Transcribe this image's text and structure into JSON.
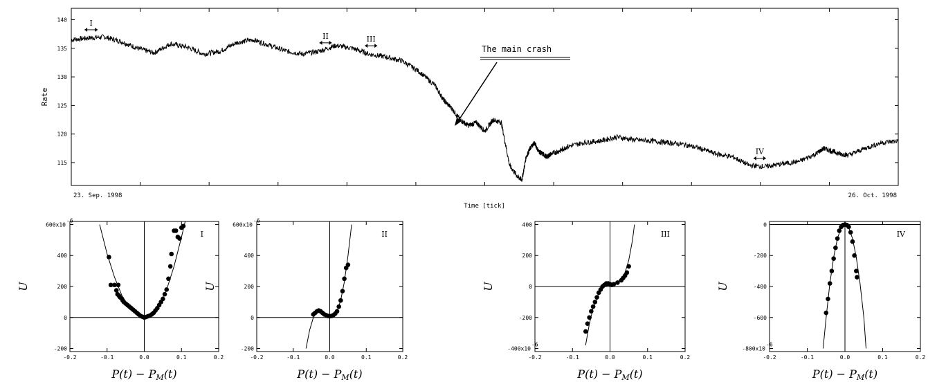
{
  "chart_data": [
    {
      "type": "line",
      "ylabel": "Rate",
      "xlabel": "Time [tick]",
      "x_start_label": "23. Sep. 1998",
      "x_end_label": "26. Oct. 1998",
      "ylim": [
        111,
        142
      ],
      "yticks": [
        115,
        120,
        125,
        130,
        135,
        140
      ],
      "series": [
        {
          "x": [
            0,
            0.02,
            0.04,
            0.06,
            0.08,
            0.1,
            0.12,
            0.14,
            0.16,
            0.18,
            0.2,
            0.22,
            0.24,
            0.26,
            0.28,
            0.3,
            0.32,
            0.34,
            0.36,
            0.38,
            0.4,
            0.42,
            0.44,
            0.45,
            0.46,
            0.47,
            0.48,
            0.49,
            0.5,
            0.51,
            0.52,
            0.53,
            0.54,
            0.545,
            0.55,
            0.555,
            0.56,
            0.565,
            0.57,
            0.575,
            0.58,
            0.59,
            0.6,
            0.62,
            0.64,
            0.66,
            0.68,
            0.7,
            0.72,
            0.74,
            0.76,
            0.78,
            0.8,
            0.82,
            0.84,
            0.86,
            0.88,
            0.9,
            0.91,
            0.92,
            0.93,
            0.94,
            0.96,
            0.98,
            1.0
          ],
          "y": [
            136.5,
            136.8,
            137.0,
            136.2,
            135.0,
            134.2,
            135.8,
            135.2,
            134.0,
            134.5,
            136.0,
            136.5,
            135.5,
            134.5,
            134.0,
            134.5,
            135.5,
            135.0,
            134.0,
            133.5,
            132.8,
            131.0,
            128.5,
            126.0,
            124.5,
            122.5,
            121.5,
            122.0,
            120.5,
            122.5,
            122.0,
            114.5,
            112.5,
            112.0,
            116.0,
            117.5,
            118.5,
            117.0,
            116.5,
            116.0,
            116.5,
            117.0,
            117.8,
            118.5,
            118.8,
            119.5,
            119.0,
            118.8,
            118.5,
            118.2,
            117.5,
            116.5,
            116.0,
            114.5,
            114.3,
            114.8,
            115.2,
            116.5,
            117.5,
            117.0,
            116.5,
            116.3,
            117.5,
            118.5,
            118.8
          ]
        }
      ],
      "annotations": [
        {
          "label": "I",
          "x_start": 0.016,
          "x_end": 0.032
        },
        {
          "label": "II",
          "x_start": 0.3,
          "x_end": 0.315
        },
        {
          "label": "III",
          "x_start": 0.355,
          "x_end": 0.37
        },
        {
          "label": "IV",
          "x_start": 0.825,
          "x_end": 0.84
        }
      ],
      "callout": "The main crash"
    },
    {
      "type": "scatter",
      "panel_label": "I",
      "xlabel": "P(t) − P_M(t)",
      "ylabel": "U",
      "xlim": [
        -0.2,
        0.2
      ],
      "ylim": [
        -220,
        620
      ],
      "xticks": [
        "-0.2",
        "-0.1",
        "0.0",
        "0.1",
        "0.2"
      ],
      "yticks": [
        "-200",
        "0",
        "200",
        "400",
        "600x10"
      ],
      "ytick_values": [
        -200,
        0,
        200,
        400,
        600
      ],
      "exponent": "-6",
      "points": [
        [
          -0.095,
          390
        ],
        [
          -0.09,
          210
        ],
        [
          -0.08,
          210
        ],
        [
          -0.075,
          175
        ],
        [
          -0.07,
          210
        ],
        [
          -0.072,
          150
        ],
        [
          -0.068,
          140
        ],
        [
          -0.065,
          130
        ],
        [
          -0.06,
          120
        ],
        [
          -0.058,
          110
        ],
        [
          -0.055,
          100
        ],
        [
          -0.05,
          90
        ],
        [
          -0.045,
          80
        ],
        [
          -0.04,
          70
        ],
        [
          -0.035,
          60
        ],
        [
          -0.03,
          50
        ],
        [
          -0.025,
          40
        ],
        [
          -0.02,
          30
        ],
        [
          -0.015,
          20
        ],
        [
          -0.01,
          10
        ],
        [
          -0.005,
          5
        ],
        [
          0.0,
          0
        ],
        [
          0.005,
          3
        ],
        [
          0.01,
          8
        ],
        [
          0.015,
          12
        ],
        [
          0.02,
          20
        ],
        [
          0.025,
          30
        ],
        [
          0.03,
          45
        ],
        [
          0.035,
          60
        ],
        [
          0.04,
          80
        ],
        [
          0.045,
          100
        ],
        [
          0.05,
          120
        ],
        [
          0.055,
          150
        ],
        [
          0.06,
          180
        ],
        [
          0.065,
          250
        ],
        [
          0.07,
          330
        ],
        [
          0.073,
          410
        ],
        [
          0.08,
          560
        ],
        [
          0.085,
          560
        ],
        [
          0.09,
          520
        ],
        [
          0.095,
          510
        ],
        [
          0.1,
          580
        ],
        [
          0.105,
          590
        ]
      ],
      "curve": [
        [
          -0.12,
          600
        ],
        [
          -0.1,
          410
        ],
        [
          -0.08,
          260
        ],
        [
          -0.06,
          140
        ],
        [
          -0.04,
          60
        ],
        [
          -0.02,
          15
        ],
        [
          0.0,
          0
        ],
        [
          0.02,
          20
        ],
        [
          0.04,
          80
        ],
        [
          0.06,
          180
        ],
        [
          0.08,
          330
        ],
        [
          0.1,
          520
        ],
        [
          0.11,
          620
        ]
      ]
    },
    {
      "type": "scatter",
      "panel_label": "II",
      "xlabel": "P(t) − P_M(t)",
      "ylabel": "U",
      "xlim": [
        -0.2,
        0.2
      ],
      "ylim": [
        -220,
        620
      ],
      "xticks": [
        "-0.2",
        "-0.1",
        "0.0",
        "0.1",
        "0.2"
      ],
      "yticks": [
        "-200",
        "0",
        "200",
        "400",
        "600x10"
      ],
      "ytick_values": [
        -200,
        0,
        200,
        400,
        600
      ],
      "exponent": "-6",
      "points": [
        [
          -0.045,
          20
        ],
        [
          -0.04,
          30
        ],
        [
          -0.035,
          40
        ],
        [
          -0.03,
          45
        ],
        [
          -0.025,
          40
        ],
        [
          -0.02,
          30
        ],
        [
          -0.015,
          20
        ],
        [
          -0.01,
          15
        ],
        [
          -0.005,
          10
        ],
        [
          0.0,
          8
        ],
        [
          0.005,
          10
        ],
        [
          0.01,
          15
        ],
        [
          0.015,
          25
        ],
        [
          0.02,
          40
        ],
        [
          0.025,
          70
        ],
        [
          0.03,
          110
        ],
        [
          0.035,
          170
        ],
        [
          0.04,
          250
        ],
        [
          0.045,
          320
        ],
        [
          0.05,
          340
        ]
      ],
      "curve": [
        [
          -0.065,
          -200
        ],
        [
          -0.055,
          -80
        ],
        [
          -0.045,
          0
        ],
        [
          -0.035,
          35
        ],
        [
          -0.025,
          40
        ],
        [
          -0.01,
          20
        ],
        [
          0.0,
          10
        ],
        [
          0.01,
          15
        ],
        [
          0.02,
          40
        ],
        [
          0.03,
          110
        ],
        [
          0.04,
          230
        ],
        [
          0.05,
          400
        ],
        [
          0.06,
          600
        ]
      ]
    },
    {
      "type": "scatter",
      "panel_label": "III",
      "xlabel": "P(t) − P_M(t)",
      "ylabel": "U",
      "xlim": [
        -0.2,
        0.2
      ],
      "ylim": [
        -420,
        420
      ],
      "xticks": [
        "-0.2",
        "-0.1",
        "0.0",
        "0.1",
        "0.2"
      ],
      "yticks": [
        "-400x10",
        "-200",
        "0",
        "200",
        "400"
      ],
      "ytick_values": [
        -400,
        -200,
        0,
        200,
        400
      ],
      "exponent": "-6",
      "points": [
        [
          -0.065,
          -290
        ],
        [
          -0.06,
          -240
        ],
        [
          -0.055,
          -200
        ],
        [
          -0.05,
          -160
        ],
        [
          -0.045,
          -130
        ],
        [
          -0.04,
          -100
        ],
        [
          -0.035,
          -70
        ],
        [
          -0.03,
          -40
        ],
        [
          -0.025,
          -20
        ],
        [
          -0.02,
          0
        ],
        [
          -0.015,
          10
        ],
        [
          -0.01,
          20
        ],
        [
          -0.005,
          20
        ],
        [
          0.0,
          15
        ],
        [
          0.005,
          10
        ],
        [
          0.01,
          15
        ],
        [
          0.02,
          25
        ],
        [
          0.03,
          40
        ],
        [
          0.035,
          55
        ],
        [
          0.04,
          70
        ],
        [
          0.045,
          90
        ],
        [
          0.05,
          130
        ]
      ],
      "curve": [
        [
          -0.065,
          -380
        ],
        [
          -0.055,
          -240
        ],
        [
          -0.045,
          -140
        ],
        [
          -0.035,
          -70
        ],
        [
          -0.025,
          -25
        ],
        [
          -0.015,
          0
        ],
        [
          0.0,
          10
        ],
        [
          0.01,
          15
        ],
        [
          0.02,
          30
        ],
        [
          0.03,
          50
        ],
        [
          0.04,
          90
        ],
        [
          0.05,
          170
        ],
        [
          0.06,
          300
        ],
        [
          0.065,
          400
        ]
      ]
    },
    {
      "type": "scatter",
      "panel_label": "IV",
      "xlabel": "P(t) − P_M(t)",
      "ylabel": "U",
      "xlim": [
        -0.2,
        0.2
      ],
      "ylim": [
        -820,
        20
      ],
      "xticks": [
        "-0.2",
        "-0.1",
        "0.0",
        "0.1",
        "0.2"
      ],
      "yticks": [
        "-800x10",
        "-600",
        "-400",
        "-200",
        "0"
      ],
      "ytick_values": [
        -800,
        -600,
        -400,
        -200,
        0
      ],
      "exponent": "-6",
      "points": [
        [
          -0.05,
          -570
        ],
        [
          -0.045,
          -480
        ],
        [
          -0.04,
          -380
        ],
        [
          -0.035,
          -300
        ],
        [
          -0.03,
          -220
        ],
        [
          -0.025,
          -150
        ],
        [
          -0.02,
          -90
        ],
        [
          -0.015,
          -40
        ],
        [
          -0.01,
          -15
        ],
        [
          -0.005,
          -3
        ],
        [
          0.0,
          0
        ],
        [
          0.005,
          -3
        ],
        [
          0.01,
          -15
        ],
        [
          0.015,
          -50
        ],
        [
          0.02,
          -110
        ],
        [
          0.025,
          -200
        ],
        [
          0.03,
          -300
        ],
        [
          0.032,
          -340
        ]
      ],
      "curve": [
        [
          -0.058,
          -800
        ],
        [
          -0.05,
          -600
        ],
        [
          -0.04,
          -380
        ],
        [
          -0.03,
          -210
        ],
        [
          -0.02,
          -90
        ],
        [
          -0.01,
          -20
        ],
        [
          0.0,
          0
        ],
        [
          0.01,
          -20
        ],
        [
          0.02,
          -90
        ],
        [
          0.03,
          -210
        ],
        [
          0.04,
          -380
        ],
        [
          0.05,
          -600
        ],
        [
          0.056,
          -800
        ]
      ]
    }
  ]
}
